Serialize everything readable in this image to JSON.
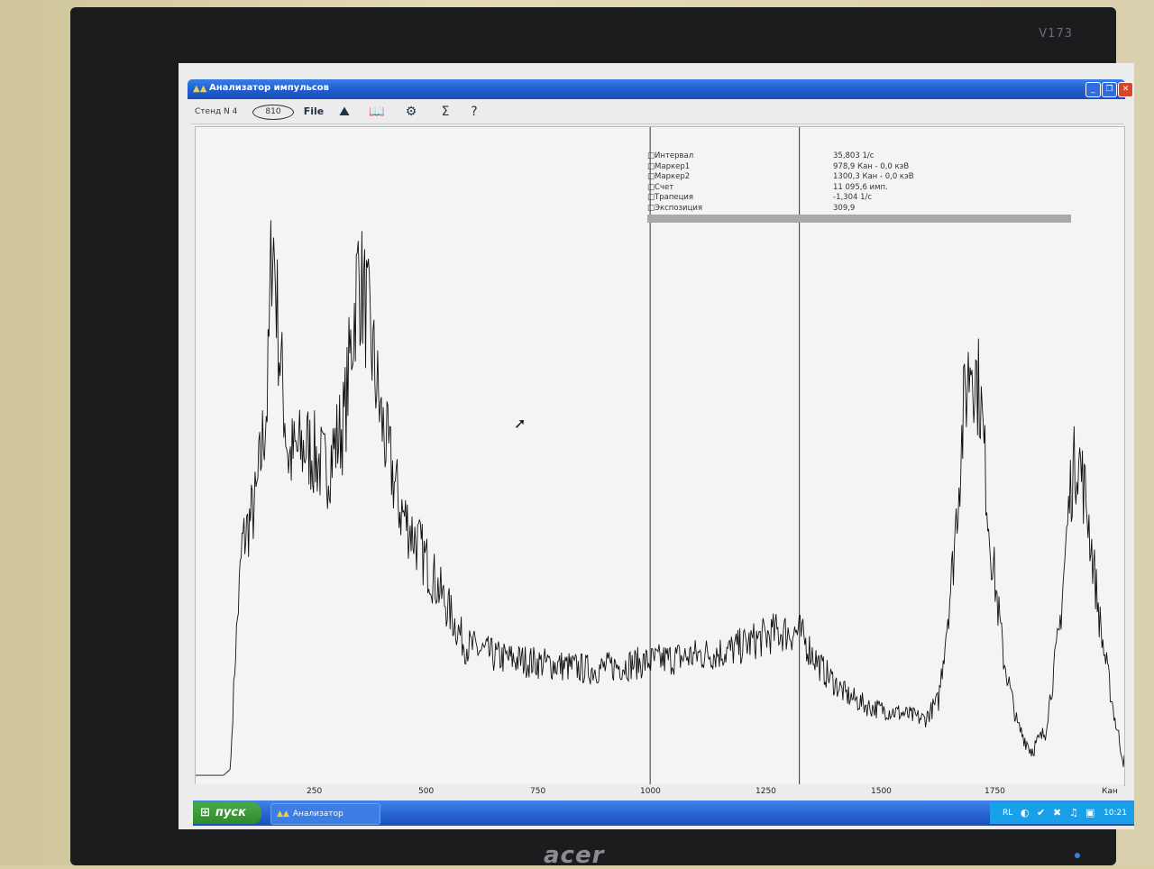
{
  "window": {
    "title": "Анализатор импульсов",
    "app_icon": "pulse-analyzer-icon"
  },
  "toolbar": {
    "stend": "Стенд N 4",
    "channel": "810",
    "icons": [
      "file-icon",
      "spectrum-icon",
      "book-icon",
      "gears-icon",
      "calibration-icon",
      "help-icon"
    ],
    "file_label": "File"
  },
  "info_panel": {
    "rows": [
      {
        "label": "Интервал",
        "value": "35,803 1/с"
      },
      {
        "label": "Маркер1",
        "value": "978,9 Кан -   0,0 кэВ"
      },
      {
        "label": "Маркер2",
        "value": "1300,3 Кан -   0,0 кэВ"
      },
      {
        "label": "Счет",
        "value": "11 095,6 имп."
      },
      {
        "label": "Трапеция",
        "value": "-1,304 1/с"
      },
      {
        "label": "Экспозиция",
        "value": "309,9"
      }
    ]
  },
  "x_axis": {
    "ticks": [
      "250",
      "500",
      "750",
      "1000",
      "1250",
      "1500",
      "1750"
    ],
    "unit": "Кан"
  },
  "taskbar": {
    "start_label": "пуск",
    "task_label": "Анализатор импульсов",
    "lang": "RL",
    "clock": "10:21"
  },
  "monitor": {
    "brand": "acer",
    "model": "V173"
  },
  "chart_data": {
    "type": "line",
    "xlabel": "Кан",
    "xlim": [
      0,
      2000
    ],
    "ylim": [
      0,
      100
    ],
    "markers": [
      978.9,
      1300.3
    ],
    "points": [
      [
        0,
        1
      ],
      [
        60,
        1
      ],
      [
        75,
        2
      ],
      [
        85,
        20
      ],
      [
        100,
        38
      ],
      [
        130,
        45
      ],
      [
        155,
        62
      ],
      [
        165,
        90
      ],
      [
        180,
        70
      ],
      [
        200,
        52
      ],
      [
        240,
        54
      ],
      [
        280,
        50
      ],
      [
        320,
        58
      ],
      [
        350,
        82
      ],
      [
        370,
        75
      ],
      [
        400,
        58
      ],
      [
        440,
        44
      ],
      [
        480,
        38
      ],
      [
        530,
        30
      ],
      [
        580,
        22
      ],
      [
        650,
        20
      ],
      [
        750,
        19
      ],
      [
        850,
        18
      ],
      [
        950,
        19
      ],
      [
        1050,
        20
      ],
      [
        1150,
        21
      ],
      [
        1250,
        24
      ],
      [
        1300,
        24
      ],
      [
        1350,
        18
      ],
      [
        1400,
        14
      ],
      [
        1450,
        12
      ],
      [
        1520,
        11
      ],
      [
        1570,
        10
      ],
      [
        1600,
        13
      ],
      [
        1630,
        34
      ],
      [
        1655,
        60
      ],
      [
        1670,
        69
      ],
      [
        1690,
        62
      ],
      [
        1710,
        40
      ],
      [
        1740,
        20
      ],
      [
        1770,
        9
      ],
      [
        1800,
        5
      ],
      [
        1830,
        8
      ],
      [
        1860,
        24
      ],
      [
        1885,
        48
      ],
      [
        1900,
        53
      ],
      [
        1920,
        44
      ],
      [
        1950,
        24
      ],
      [
        1980,
        10
      ],
      [
        2000,
        3
      ]
    ]
  }
}
